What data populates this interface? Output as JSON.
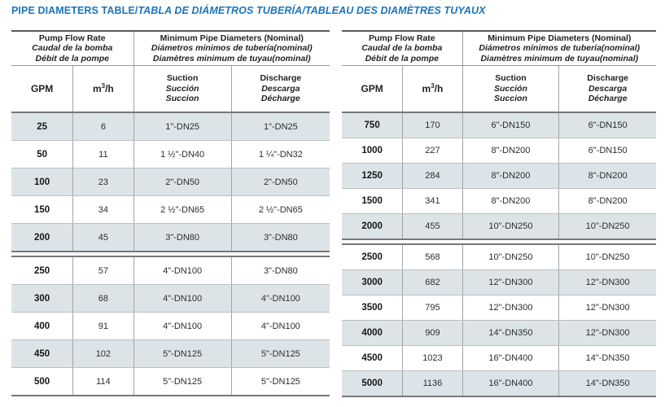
{
  "title": {
    "main": "PIPE DIAMETERS TABLE/",
    "italic": "TABLA DE DIÁMETROS TUBERÍA/TABLEAU DES DIAMÈTRES TUYAUX"
  },
  "colors": {
    "title_blue": "#1B75BC",
    "row_shade": "#DDE4E8",
    "border_dark": "#58595b",
    "border_light": "#BCBEC0"
  },
  "header": {
    "flow": [
      "Pump Flow Rate",
      "Caudal de la bomba",
      "Débit de la pompe"
    ],
    "diameters": [
      "Minimum Pipe Diameters (Nominal)",
      "Diámetros mínimos de tubería(nominal)",
      "Diamètres minimum de tuyau(nominal)"
    ],
    "gpm": "GPM",
    "m3h": "m³/h",
    "suction": [
      "Suction",
      "Succión",
      "Succion"
    ],
    "discharge": [
      "Discharge",
      "Descarga",
      "Décharge"
    ]
  },
  "tables": [
    {
      "name": "low-flow",
      "sections": [
        {
          "rows": [
            [
              "25",
              "6",
              "1\"-DN25",
              "1\"-DN25"
            ],
            [
              "50",
              "11",
              "1 ½\"-DN40",
              "1 ¼\"-DN32"
            ],
            [
              "100",
              "23",
              "2\"-DN50",
              "2\"-DN50"
            ],
            [
              "150",
              "34",
              "2 ½\"-DN65",
              "2 ½\"-DN65"
            ],
            [
              "200",
              "45",
              "3\"-DN80",
              "3\"-DN80"
            ]
          ]
        },
        {
          "rows": [
            [
              "250",
              "57",
              "4\"-DN100",
              "3\"-DN80"
            ],
            [
              "300",
              "68",
              "4\"-DN100",
              "4\"-DN100"
            ],
            [
              "400",
              "91",
              "4\"-DN100",
              "4\"-DN100"
            ],
            [
              "450",
              "102",
              "5\"-DN125",
              "5\"-DN125"
            ],
            [
              "500",
              "114",
              "5\"-DN125",
              "5\"-DN125"
            ]
          ]
        }
      ]
    },
    {
      "name": "high-flow",
      "sections": [
        {
          "rows": [
            [
              "750",
              "170",
              "6\"-DN150",
              "6\"-DN150"
            ],
            [
              "1000",
              "227",
              "8\"-DN200",
              "6\"-DN150"
            ],
            [
              "1250",
              "284",
              "8\"-DN200",
              "8\"-DN200"
            ],
            [
              "1500",
              "341",
              "8\"-DN200",
              "8\"-DN200"
            ],
            [
              "2000",
              "455",
              "10\"-DN250",
              "10\"-DN250"
            ]
          ]
        },
        {
          "rows": [
            [
              "2500",
              "568",
              "10\"-DN250",
              "10\"-DN250"
            ],
            [
              "3000",
              "682",
              "12\"-DN300",
              "12\"-DN300"
            ],
            [
              "3500",
              "795",
              "12\"-DN300",
              "12\"-DN300"
            ],
            [
              "4000",
              "909",
              "14\"-DN350",
              "12\"-DN300"
            ],
            [
              "4500",
              "1023",
              "16\"-DN400",
              "14\"-DN350"
            ],
            [
              "5000",
              "1136",
              "16\"-DN400",
              "14\"-DN350"
            ]
          ]
        }
      ]
    }
  ]
}
